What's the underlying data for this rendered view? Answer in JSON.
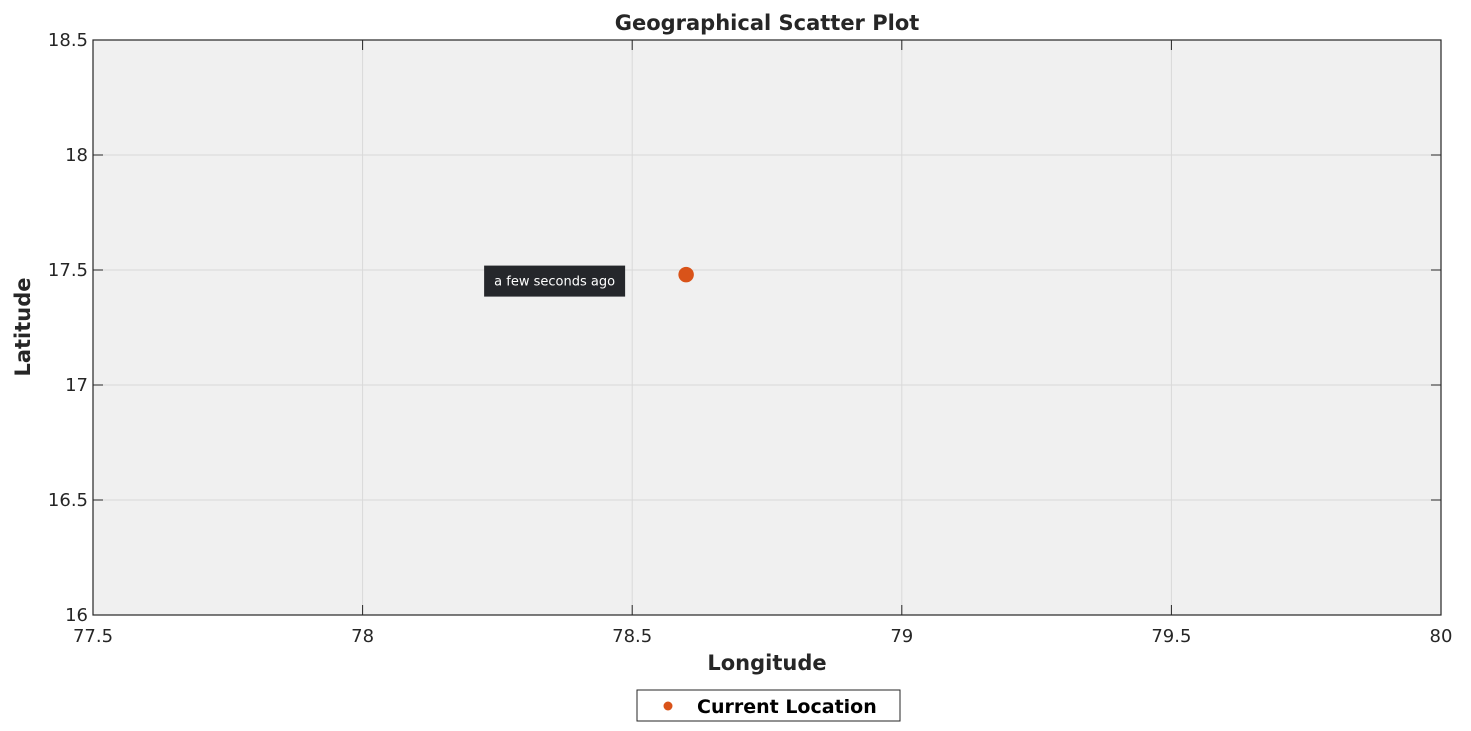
{
  "chart_data": {
    "type": "scatter",
    "title": "Geographical Scatter Plot",
    "xlabel": "Longitude",
    "ylabel": "Latitude",
    "xlim": [
      77.5,
      80
    ],
    "ylim": [
      16,
      18.5
    ],
    "x_ticks": [
      "77.5",
      "78",
      "78.5",
      "79",
      "79.5",
      "80"
    ],
    "y_ticks": [
      "16",
      "16.5",
      "17",
      "17.5",
      "18",
      "18.5"
    ],
    "grid": true,
    "legend_position": "bottom-center",
    "series": [
      {
        "name": "Current Location",
        "color": "#d95319",
        "marker": "circle",
        "points": [
          {
            "x": 78.6,
            "y": 17.48
          }
        ]
      }
    ],
    "annotations": [
      {
        "text": "a few seconds ago",
        "x": 78.6,
        "y": 17.48,
        "placement": "left"
      }
    ],
    "colors": {
      "plot_background": "#f0f0f0",
      "grid": "#d9d9d9",
      "axis": "#262626",
      "tooltip_background": "#25272b"
    }
  }
}
